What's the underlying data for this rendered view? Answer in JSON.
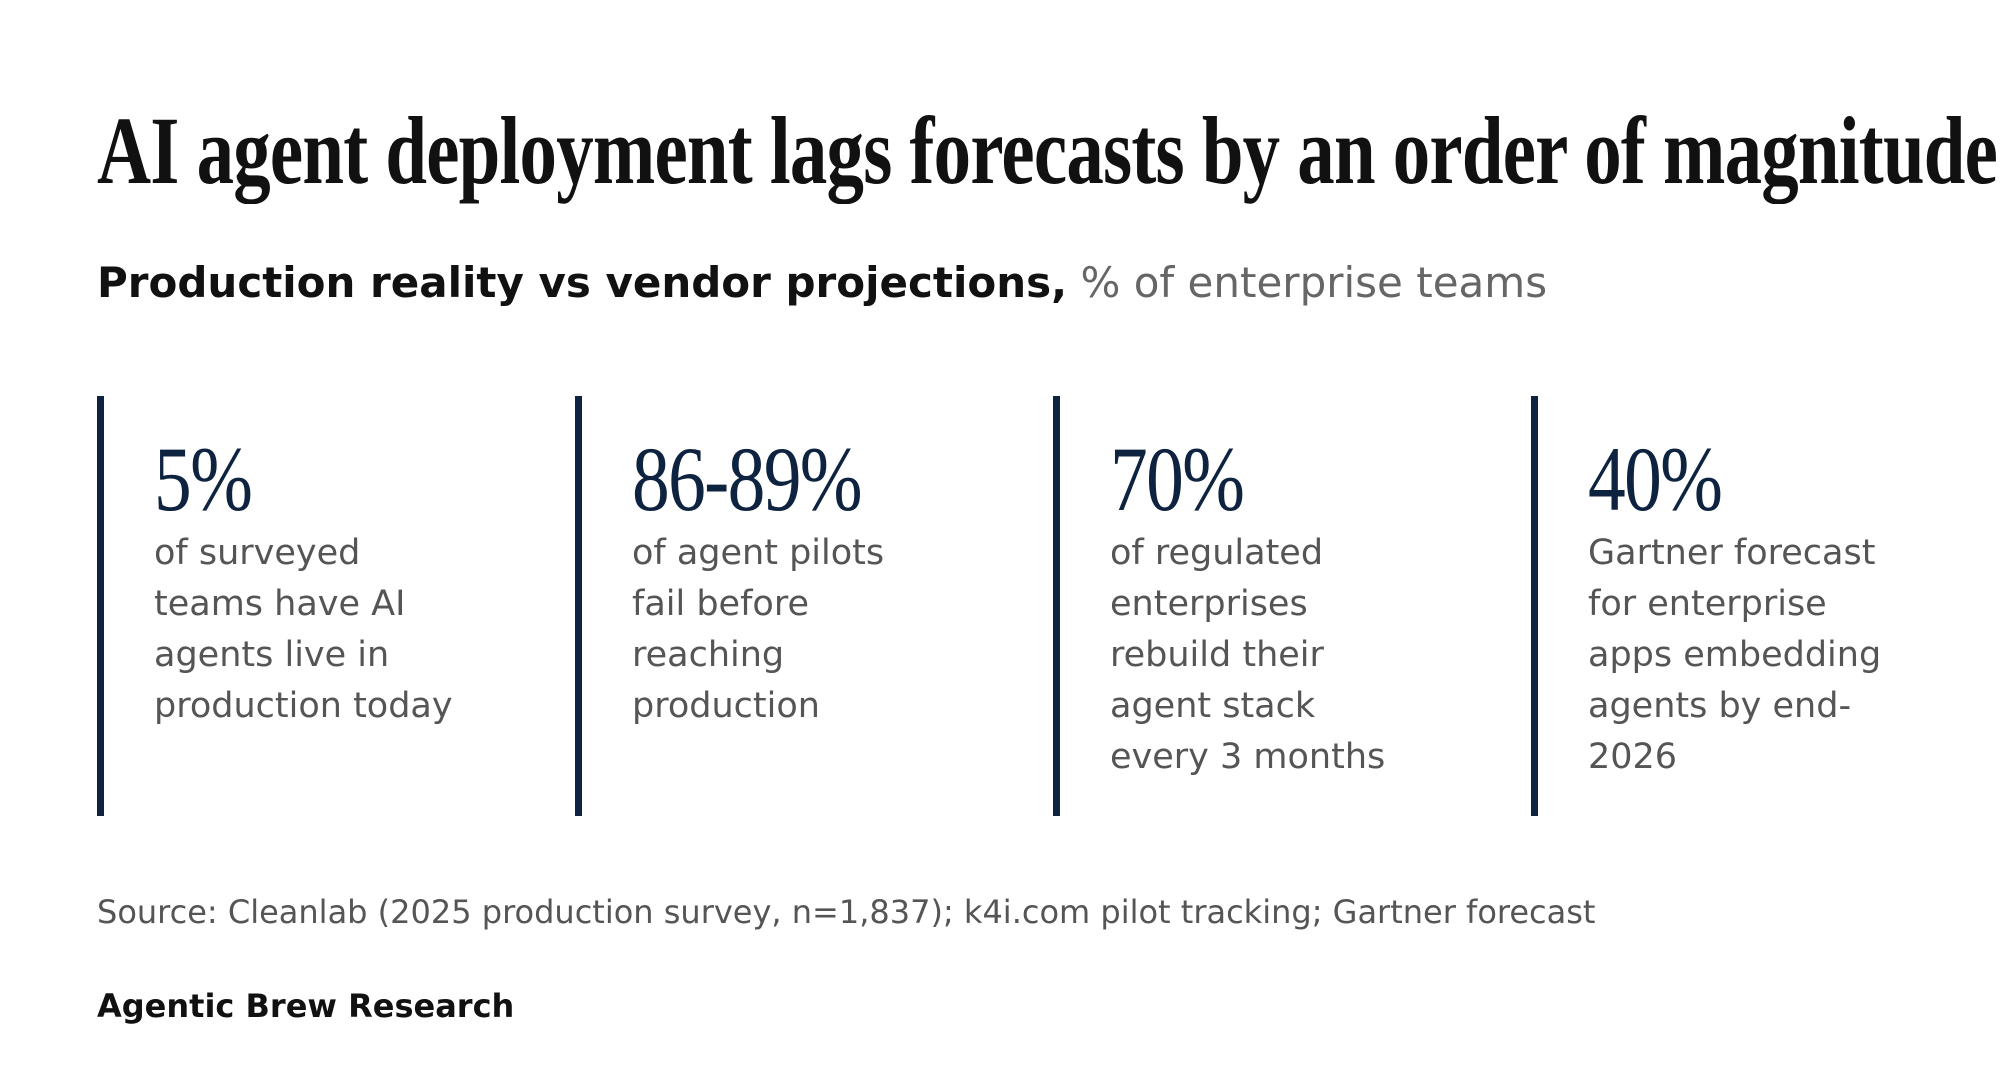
{
  "header": {
    "title": "AI agent deployment lags forecasts by an order of magnitude.",
    "subtitle": {
      "lead": "Production reality vs vendor projections,",
      "unit": "% of enterprise teams"
    }
  },
  "stats": [
    {
      "value": "5%",
      "text": "of surveyed teams have AI agents live in production today"
    },
    {
      "value": "86-89%",
      "text": "of agent pilots fail before reaching production"
    },
    {
      "value": "70%",
      "text": "of regulated enterprises rebuild their agent stack every 3 months"
    },
    {
      "value": "40%",
      "text": "Gartner forecast for enterprise apps embedding agents by end-2026"
    }
  ],
  "source": "Source: Cleanlab (2025 production survey, n=1,837); k4i.com pilot tracking; Gartner forecast",
  "footer": "Agentic Brew Research"
}
